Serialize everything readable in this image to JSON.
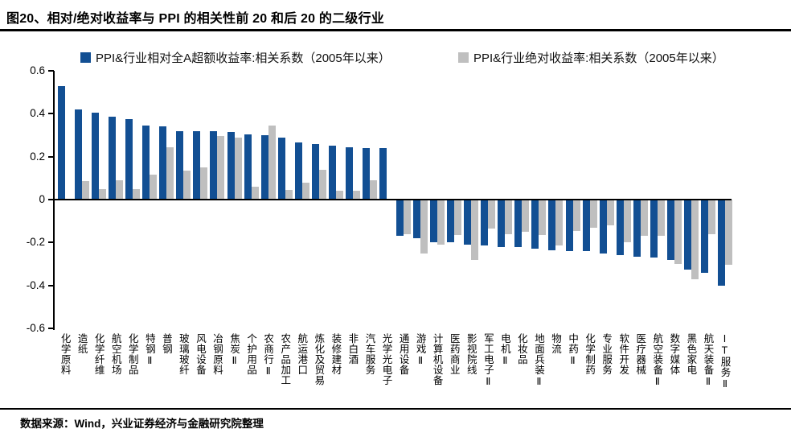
{
  "page": {
    "title": "图20、相对/绝对收益率与 PPI 的相关性前 20 和后 20 的二级行业",
    "footer": "数据来源：Wind，兴业证券经济与金融研究院整理"
  },
  "chart_data": {
    "type": "bar",
    "title": "图20、相对/绝对收益率与 PPI 的相关性前 20 和后 20 的二级行业",
    "categories": [
      "化学原料",
      "造纸",
      "化学纤维",
      "航空机场",
      "化学制品",
      "特钢Ⅱ",
      "普钢",
      "玻璃玻纤",
      "风电设备",
      "冶钢原料",
      "焦炭Ⅱ",
      "个护用品",
      "农商行Ⅱ",
      "农产品加工",
      "航运港口",
      "炼化及贸易",
      "装修建材",
      "非白酒",
      "汽车服务",
      "光学光电子",
      "通用设备",
      "游戏Ⅱ",
      "计算机设备",
      "医药商业",
      "影视院线",
      "军工电子Ⅱ",
      "电机Ⅱ",
      "化妆品",
      "地面兵装Ⅱ",
      "物流",
      "中药Ⅱ",
      "化学制药",
      "专业服务",
      "软件开发",
      "医疗器械",
      "航空装备Ⅱ",
      "数字媒体",
      "黑色家电",
      "航天装备Ⅱ",
      "IT服务Ⅱ"
    ],
    "series": [
      {
        "name": "PPI&行业相对全A超额收益率:相关系数（2005年以来）",
        "color": "#124f93",
        "values": [
          0.53,
          0.42,
          0.405,
          0.385,
          0.375,
          0.345,
          0.34,
          0.32,
          0.32,
          0.32,
          0.315,
          0.305,
          0.3,
          0.29,
          0.265,
          0.26,
          0.25,
          0.245,
          0.24,
          0.24,
          -0.17,
          -0.18,
          -0.2,
          -0.2,
          -0.21,
          -0.215,
          -0.22,
          -0.22,
          -0.23,
          -0.235,
          -0.24,
          -0.24,
          -0.25,
          -0.26,
          -0.265,
          -0.27,
          -0.28,
          -0.325,
          -0.34,
          -0.4
        ]
      },
      {
        "name": "PPI&行业绝对收益率:相关系数（2005年以来）",
        "color": "#bfbfbf",
        "values": [
          0.0,
          0.085,
          0.05,
          0.09,
          0.05,
          0.115,
          0.245,
          0.135,
          0.15,
          0.295,
          0.29,
          0.06,
          0.345,
          0.045,
          0.08,
          0.14,
          0.04,
          0.04,
          0.09,
          0.0,
          -0.16,
          -0.25,
          -0.21,
          -0.165,
          -0.28,
          -0.135,
          -0.16,
          -0.15,
          -0.165,
          -0.215,
          -0.145,
          -0.13,
          -0.12,
          -0.2,
          -0.17,
          -0.17,
          -0.3,
          -0.37,
          -0.16,
          -0.305
        ]
      }
    ],
    "xlabel": "",
    "ylabel": "",
    "ylim": [
      -0.6,
      0.6
    ],
    "ytick_labels": [
      "0.6",
      "0.4",
      "0.2",
      "0",
      "-0.2",
      "-0.4",
      "-0.6"
    ],
    "grid": false,
    "legend_position": "top",
    "axis_color": "#000000"
  }
}
